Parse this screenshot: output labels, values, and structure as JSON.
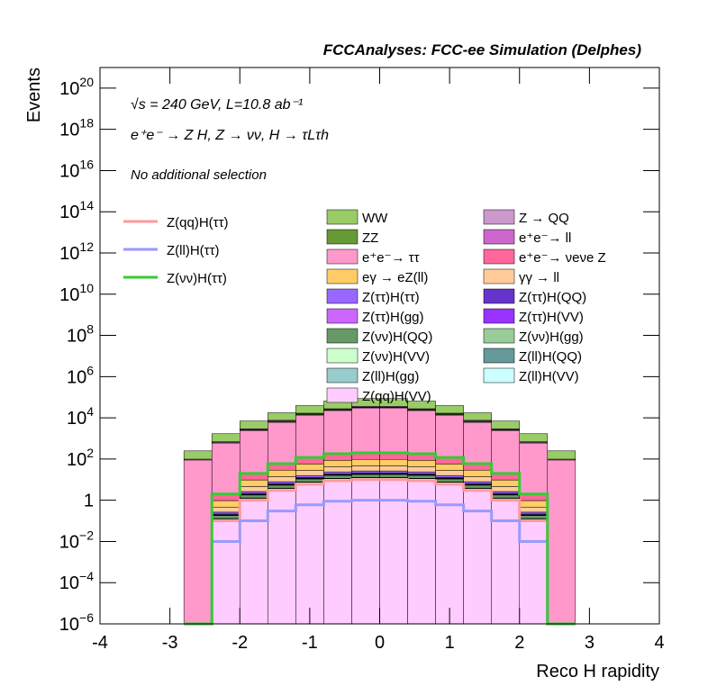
{
  "chart_data": {
    "type": "histogram",
    "title": "FCCAnalyses: FCC-ee Simulation (Delphes)",
    "annotations": [
      "√s = 240 GeV, L=10.8 ab⁻¹",
      "e⁺e⁻ → Z H, Z → νν, H → τLτh",
      "No additional selection"
    ],
    "xlabel": "Reco H rapidity",
    "ylabel": "Events",
    "log_y": true,
    "stacked": true,
    "xlim": [
      -4,
      4
    ],
    "xticks": [
      -4,
      -3,
      -2,
      -1,
      0,
      1,
      2,
      3,
      4
    ],
    "ylim": [
      1e-06,
      1e+21
    ],
    "yticks": [
      {
        "value": 1e-06,
        "label": "10",
        "exponent": "−6"
      },
      {
        "value": 0.0001,
        "label": "10",
        "exponent": "−4"
      },
      {
        "value": 0.01,
        "label": "10",
        "exponent": "−2"
      },
      1,
      {
        "value": 100,
        "label": "10",
        "exponent": "2"
      },
      {
        "value": 10000.0,
        "label": "10",
        "exponent": "4"
      },
      {
        "value": 1000000.0,
        "label": "10",
        "exponent": "6"
      },
      {
        "value": 100000000.0,
        "label": "10",
        "exponent": "8"
      },
      {
        "value": 10000000000.0,
        "label": "10",
        "exponent": "10"
      },
      {
        "value": 1000000000000.0,
        "label": "10",
        "exponent": "12"
      },
      {
        "value": 100000000000000.0,
        "label": "10",
        "exponent": "14"
      },
      {
        "value": 1e+16,
        "label": "10",
        "exponent": "16"
      },
      {
        "value": 1e+18,
        "label": "10",
        "exponent": "18"
      },
      {
        "value": 1e+20,
        "label": "10",
        "exponent": "20"
      }
    ],
    "bins": [
      -2.8,
      -2.4,
      -2.0,
      -1.6,
      -1.2,
      -0.8,
      -0.4,
      0,
      0.4,
      0.8,
      1.2,
      1.6,
      2.0,
      2.4,
      2.8
    ],
    "series": [
      {
        "name": "WW",
        "color": "#99cc66",
        "style": "fill",
        "values": [
          150,
          1000,
          4000,
          10000,
          22500,
          37500,
          50000,
          50000,
          37500,
          22500,
          10000,
          4000,
          1000,
          150
        ]
      },
      {
        "name": "Z → QQ",
        "color": "#cc99cc",
        "style": "fill",
        "values": [
          9,
          60,
          240,
          600,
          1350,
          2250,
          3000,
          3000,
          2250,
          1350,
          600,
          240,
          60,
          9
        ]
      },
      {
        "name": "ZZ",
        "color": "#669933",
        "style": "fill",
        "values": [
          0,
          20,
          200,
          600,
          1200,
          1800,
          2000,
          2000,
          1800,
          1200,
          600,
          200,
          20,
          0
        ]
      },
      {
        "name": "e⁺e⁻→ ll",
        "color": "#cc66cc",
        "style": "fill",
        "values": [
          0,
          10,
          100,
          300,
          600,
          900,
          1000,
          1000,
          900,
          600,
          300,
          100,
          10,
          0
        ]
      },
      {
        "name": "e⁺e⁻→ ττ",
        "color": "#ff99cc",
        "style": "fill",
        "values": [
          90,
          600,
          2400,
          6000,
          13500,
          22500,
          30000,
          30000,
          22500,
          13500,
          6000,
          2400,
          600,
          90
        ]
      },
      {
        "name": "e⁺e⁻→ νeνe Z",
        "color": "#ff6699",
        "style": "fill",
        "values": [
          0,
          1,
          10,
          30,
          60,
          90,
          100,
          100,
          90,
          60,
          30,
          10,
          1,
          0
        ]
      },
      {
        "name": "eγ → eZ(ll)",
        "color": "#ffcc66",
        "style": "fill",
        "values": [
          0,
          0.5,
          5,
          15,
          30,
          45,
          50,
          50,
          45,
          30,
          15,
          5,
          0.5,
          0
        ]
      },
      {
        "name": "γγ → ll",
        "color": "#ffcc99",
        "style": "fill",
        "values": [
          0,
          0.2,
          2,
          6,
          12,
          18,
          20,
          20,
          18,
          12,
          6,
          2,
          0.2,
          0
        ]
      },
      {
        "name": "Z(ττ)H(ττ)",
        "color": "#9966ff",
        "style": "fill",
        "values": [
          0,
          0.05,
          0.5,
          1.5,
          3,
          4.5,
          5,
          5,
          4.5,
          3,
          1.5,
          0.5,
          0.05,
          0
        ]
      },
      {
        "name": "Z(ττ)H(QQ)",
        "color": "#6633cc",
        "style": "fill",
        "values": [
          0,
          0.02,
          0.2,
          0.6,
          1.2,
          1.8,
          2,
          2,
          1.8,
          1.2,
          0.6,
          0.2,
          0.02,
          0
        ]
      },
      {
        "name": "Z(ττ)H(gg)",
        "color": "#cc66ff",
        "style": "fill",
        "values": [
          0,
          0.005,
          0.05,
          0.15,
          0.3,
          0.45,
          0.5,
          0.5,
          0.45,
          0.3,
          0.15,
          0.05,
          0.005,
          0
        ]
      },
      {
        "name": "Z(ττ)H(VV)",
        "color": "#9933ff",
        "style": "fill",
        "values": [
          0,
          0.01,
          0.1,
          0.3,
          0.6,
          0.9,
          1,
          1,
          0.9,
          0.6,
          0.3,
          0.1,
          0.01,
          0
        ]
      },
      {
        "name": "Z(νν)H(QQ)",
        "color": "#669966",
        "style": "fill",
        "values": [
          0,
          0.05,
          0.5,
          1.5,
          3,
          4.5,
          5,
          5,
          4.5,
          3,
          1.5,
          0.5,
          0.05,
          0
        ]
      },
      {
        "name": "Z(νν)H(gg)",
        "color": "#99cc99",
        "style": "fill",
        "values": [
          0,
          0.005,
          0.05,
          0.15,
          0.3,
          0.45,
          0.5,
          0.5,
          0.45,
          0.3,
          0.15,
          0.05,
          0.005,
          0
        ]
      },
      {
        "name": "Z(νν)H(VV)",
        "color": "#ccffcc",
        "style": "fill",
        "values": [
          0,
          0.02,
          0.2,
          0.6,
          1.2,
          1.8,
          2,
          2,
          1.8,
          1.2,
          0.6,
          0.2,
          0.02,
          0
        ]
      },
      {
        "name": "Z(ll)H(QQ)",
        "color": "#669999",
        "style": "fill",
        "values": [
          0,
          0.003,
          0.03,
          0.09,
          0.18,
          0.27,
          0.3,
          0.3,
          0.27,
          0.18,
          0.09,
          0.03,
          0.003,
          0
        ]
      },
      {
        "name": "Z(ll)H(gg)",
        "color": "#99cccc",
        "style": "fill",
        "values": [
          0,
          0.0005,
          0.005,
          0.015,
          0.03,
          0.045,
          0.05,
          0.05,
          0.045,
          0.03,
          0.015,
          0.005,
          0.0005,
          0
        ]
      },
      {
        "name": "Z(ll)H(VV)",
        "color": "#ccffff",
        "style": "fill",
        "values": [
          0,
          0.001,
          0.01,
          0.03,
          0.06,
          0.09,
          0.1,
          0.1,
          0.09,
          0.06,
          0.03,
          0.01,
          0.001,
          0
        ]
      },
      {
        "name": "Z(qq)H(VV)",
        "color": "#ffccff",
        "style": "fill",
        "values": [
          0,
          0.1,
          1,
          3,
          6,
          9,
          10,
          10,
          9,
          6,
          3,
          1,
          0.1,
          0
        ]
      },
      {
        "name": "Z(qq)H(ττ)",
        "color": "#ff9999",
        "style": "line",
        "values": [
          0,
          0.1,
          1,
          3,
          6,
          9,
          10,
          10,
          9,
          6,
          3,
          1,
          0.1,
          0
        ]
      },
      {
        "name": "Z(ll)H(ττ)",
        "color": "#9999ff",
        "style": "line",
        "values": [
          0,
          0.01,
          0.1,
          0.3,
          0.6,
          0.9,
          1,
          1,
          0.9,
          0.6,
          0.3,
          0.1,
          0.01,
          0
        ]
      },
      {
        "name": "Z(νν)H(ττ)",
        "color": "#33cc33",
        "style": "line",
        "values": [
          0,
          2,
          20,
          60,
          120,
          180,
          200,
          200,
          180,
          120,
          60,
          20,
          2,
          0
        ]
      }
    ]
  }
}
